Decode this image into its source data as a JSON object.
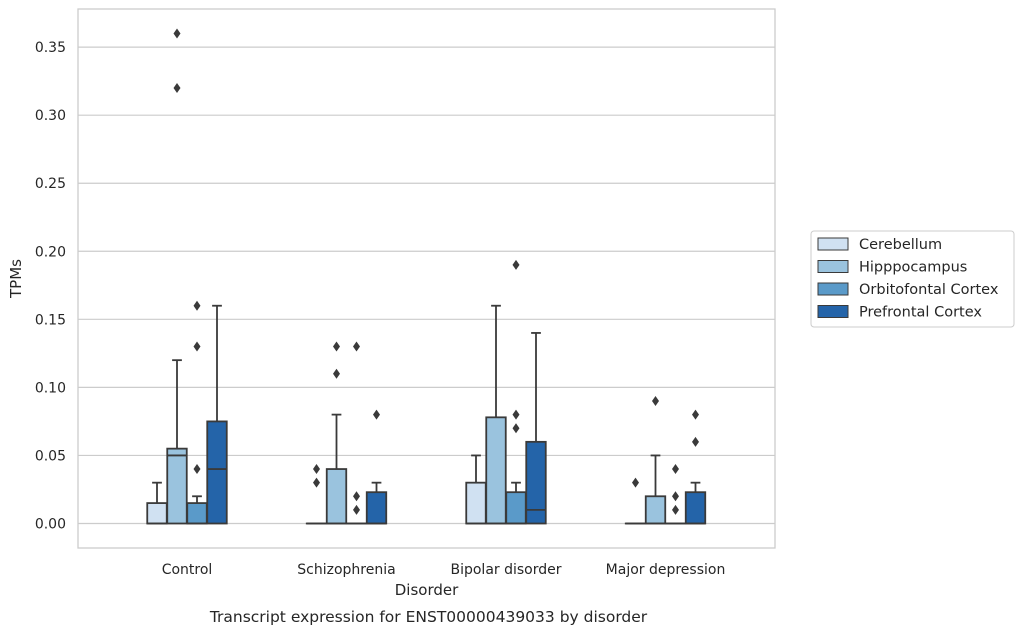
{
  "chart_data": {
    "type": "box",
    "title": "",
    "caption": "Transcript expression for ENST00000439033 by disorder",
    "xlabel": "Disorder",
    "ylabel": "TPMs",
    "ylim": [
      -0.018,
      0.378
    ],
    "yticks": [
      "0.00",
      "0.05",
      "0.10",
      "0.15",
      "0.20",
      "0.25",
      "0.30",
      "0.35"
    ],
    "grid": "horizontal",
    "legend_position": "right",
    "categories": [
      "Control",
      "Schizophrenia",
      "Bipolar disorder",
      "Major depression"
    ],
    "series": [
      {
        "name": "Cerebellum",
        "color": "#d0e1f2",
        "boxes": [
          {
            "q1": 0.0,
            "median": 0.0,
            "q3": 0.015,
            "whisker_low": 0.0,
            "whisker_high": 0.03,
            "outliers": []
          },
          {
            "q1": 0.0,
            "median": 0.0,
            "q3": 0.0,
            "whisker_low": 0.0,
            "whisker_high": 0.0,
            "outliers": [
              0.03,
              0.04
            ]
          },
          {
            "q1": 0.0,
            "median": 0.0,
            "q3": 0.03,
            "whisker_low": 0.0,
            "whisker_high": 0.05,
            "outliers": []
          },
          {
            "q1": 0.0,
            "median": 0.0,
            "q3": 0.0,
            "whisker_low": 0.0,
            "whisker_high": 0.0,
            "outliers": [
              0.03
            ]
          }
        ]
      },
      {
        "name": "Hipppocampus",
        "color": "#9ac3de",
        "boxes": [
          {
            "q1": 0.0,
            "median": 0.05,
            "q3": 0.055,
            "whisker_low": 0.0,
            "whisker_high": 0.12,
            "outliers": [
              0.32,
              0.36
            ]
          },
          {
            "q1": 0.0,
            "median": 0.0,
            "q3": 0.04,
            "whisker_low": 0.0,
            "whisker_high": 0.08,
            "outliers": [
              0.11,
              0.13
            ]
          },
          {
            "q1": 0.0,
            "median": 0.0,
            "q3": 0.078,
            "whisker_low": 0.0,
            "whisker_high": 0.16,
            "outliers": []
          },
          {
            "q1": 0.0,
            "median": 0.0,
            "q3": 0.02,
            "whisker_low": 0.0,
            "whisker_high": 0.05,
            "outliers": [
              0.09
            ]
          }
        ]
      },
      {
        "name": "Orbitofontal Cortex",
        "color": "#5a9ac9",
        "boxes": [
          {
            "q1": 0.0,
            "median": 0.0,
            "q3": 0.015,
            "whisker_low": 0.0,
            "whisker_high": 0.02,
            "outliers": [
              0.04,
              0.13,
              0.16
            ]
          },
          {
            "q1": 0.0,
            "median": 0.0,
            "q3": 0.0,
            "whisker_low": 0.0,
            "whisker_high": 0.0,
            "outliers": [
              0.01,
              0.02,
              0.13
            ]
          },
          {
            "q1": 0.0,
            "median": 0.0,
            "q3": 0.023,
            "whisker_low": 0.0,
            "whisker_high": 0.03,
            "outliers": [
              0.07,
              0.08,
              0.19
            ]
          },
          {
            "q1": 0.0,
            "median": 0.0,
            "q3": 0.0,
            "whisker_low": 0.0,
            "whisker_high": 0.0,
            "outliers": [
              0.01,
              0.02,
              0.04
            ]
          }
        ]
      },
      {
        "name": "Prefrontal Cortex",
        "color": "#2464a9",
        "boxes": [
          {
            "q1": 0.0,
            "median": 0.04,
            "q3": 0.075,
            "whisker_low": 0.0,
            "whisker_high": 0.16,
            "outliers": []
          },
          {
            "q1": 0.0,
            "median": 0.0,
            "q3": 0.023,
            "whisker_low": 0.0,
            "whisker_high": 0.03,
            "outliers": [
              0.08
            ]
          },
          {
            "q1": 0.0,
            "median": 0.01,
            "q3": 0.06,
            "whisker_low": 0.0,
            "whisker_high": 0.14,
            "outliers": []
          },
          {
            "q1": 0.0,
            "median": 0.0,
            "q3": 0.023,
            "whisker_low": 0.0,
            "whisker_high": 0.03,
            "outliers": [
              0.06,
              0.08
            ]
          }
        ]
      }
    ]
  }
}
